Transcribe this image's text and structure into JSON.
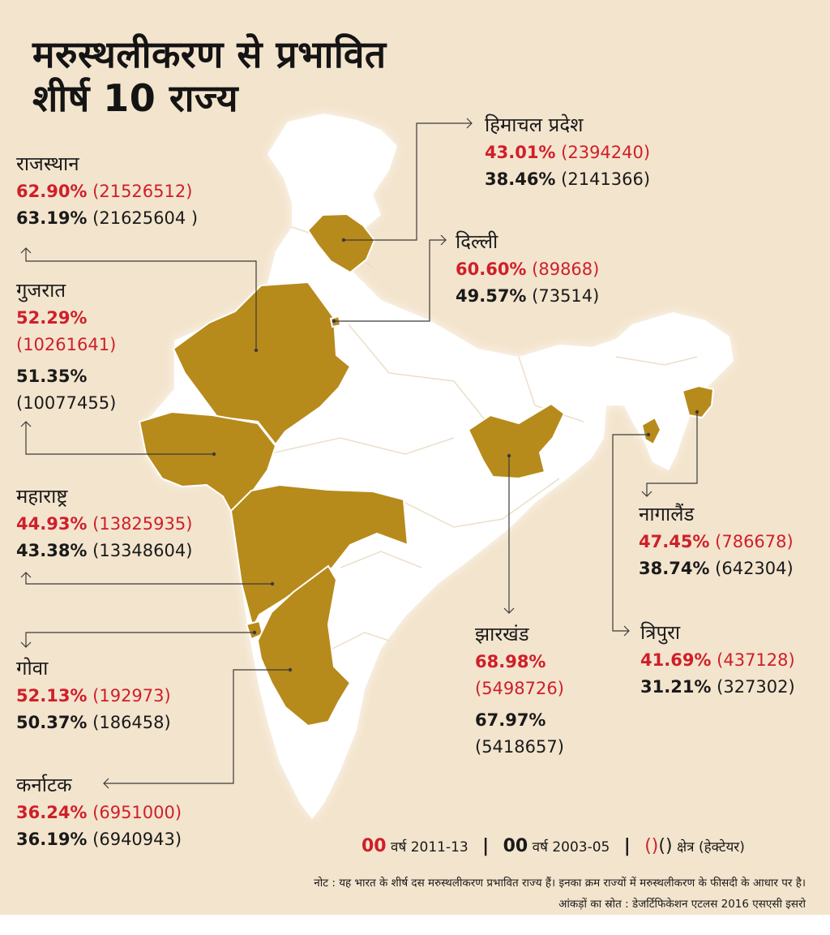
{
  "title": [
    "मरुस्थलीकरण से प्रभावित",
    "शीर्ष 10 राज्य"
  ],
  "colors": {
    "highlight": "#b78a1c",
    "accent_red": "#cf1f2a",
    "land": "#ffffff",
    "background": "#f3e4cd"
  },
  "states": [
    {
      "key": "rajasthan",
      "name": "राजस्थान",
      "pct_2011_13": "62.90%",
      "area_2011_13": "(21526512)",
      "pct_2003_05": "63.19%",
      "area_2003_05": "(21625604 )"
    },
    {
      "key": "gujarat",
      "name": "गुजरात",
      "pct_2011_13": "52.29%",
      "area_2011_13": "(10261641)",
      "pct_2003_05": "51.35%",
      "area_2003_05": "(10077455)"
    },
    {
      "key": "maharashtra",
      "name": "महाराष्ट्र",
      "pct_2011_13": "44.93%",
      "area_2011_13": "(13825935)",
      "pct_2003_05": "43.38%",
      "area_2003_05": "(13348604)"
    },
    {
      "key": "goa",
      "name": "गोवा",
      "pct_2011_13": "52.13%",
      "area_2011_13": "(192973)",
      "pct_2003_05": "50.37%",
      "area_2003_05": "(186458)"
    },
    {
      "key": "karnataka",
      "name": "कर्नाटक",
      "pct_2011_13": "36.24%",
      "area_2011_13": "(6951000)",
      "pct_2003_05": "36.19%",
      "area_2003_05": "(6940943)"
    },
    {
      "key": "himachal",
      "name": "हिमाचल प्रदेश",
      "pct_2011_13": "43.01%",
      "area_2011_13": "(2394240)",
      "pct_2003_05": "38.46%",
      "area_2003_05": "(2141366)"
    },
    {
      "key": "delhi",
      "name": "दिल्ली",
      "pct_2011_13": "60.60%",
      "area_2011_13": "(89868)",
      "pct_2003_05": "49.57%",
      "area_2003_05": "(73514)"
    },
    {
      "key": "jharkhand",
      "name": "झारखंड",
      "pct_2011_13": "68.98%",
      "area_2011_13": "(5498726)",
      "pct_2003_05": "67.97%",
      "area_2003_05": "(5418657)"
    },
    {
      "key": "nagaland",
      "name": "नागालैंड",
      "pct_2011_13": "47.45%",
      "area_2011_13": "(786678)",
      "pct_2003_05": "38.74%",
      "area_2003_05": "(642304)"
    },
    {
      "key": "tripura",
      "name": "त्रिपुरा",
      "pct_2011_13": "41.69%",
      "area_2011_13": "(437128)",
      "pct_2003_05": "31.21%",
      "area_2003_05": "(327302)"
    }
  ],
  "legend": {
    "sample_value": "00",
    "period_2011": "वर्ष 2011-13",
    "period_2003": "वर्ष 2003-05",
    "separator": "|",
    "area_symbol": "()",
    "area_label": "क्षेत्र (हेक्टेयर)"
  },
  "footer": {
    "note": "नोट : यह भारत के शीर्ष दस मरुस्थलीकरण प्रभावित राज्य हैं। इनका क्रम राज्यों में मरुस्थलीकरण के फीसदी के आधार पर है।",
    "source": "आंकड़ों का स्रोत :  डेजर्टिफिकेशन एटलस 2016 एसएसी इसरो"
  }
}
